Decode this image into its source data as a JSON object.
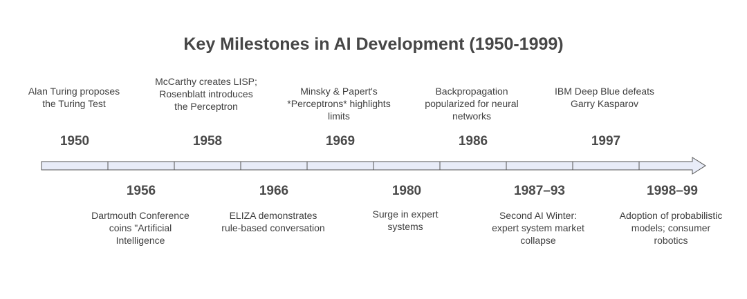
{
  "title": "Key Milestones in AI Development (1950-1999)",
  "colors": {
    "bar_fill": "#e8ecf8",
    "bar_stroke": "#555555",
    "text": "#4a4a4a"
  },
  "milestones": [
    {
      "year": "1950",
      "text": "Alan Turing proposes the Turing Test"
    },
    {
      "year": "1956",
      "text": "Dartmouth Conference coins \"Artificial Intelligence"
    },
    {
      "year": "1958",
      "text": "McCarthy creates LISP; Rosenblatt introduces the Perceptron"
    },
    {
      "year": "1966",
      "text": "ELIZA demonstrates rule-based conversation"
    },
    {
      "year": "1969",
      "text": "Minsky & Papert's *Perceptrons* highlights limits"
    },
    {
      "year": "1980",
      "text": "Surge in expert systems"
    },
    {
      "year": "1986",
      "text": "Backpropagation popularized for neural networks"
    },
    {
      "year": "1987–93",
      "text": "Second AI Winter: expert system market collapse"
    },
    {
      "year": "1997",
      "text": "IBM Deep Blue defeats Garry Kasparov"
    },
    {
      "year": "1998–99",
      "text": "Adoption of probabilistic models; consumer robotics"
    }
  ]
}
